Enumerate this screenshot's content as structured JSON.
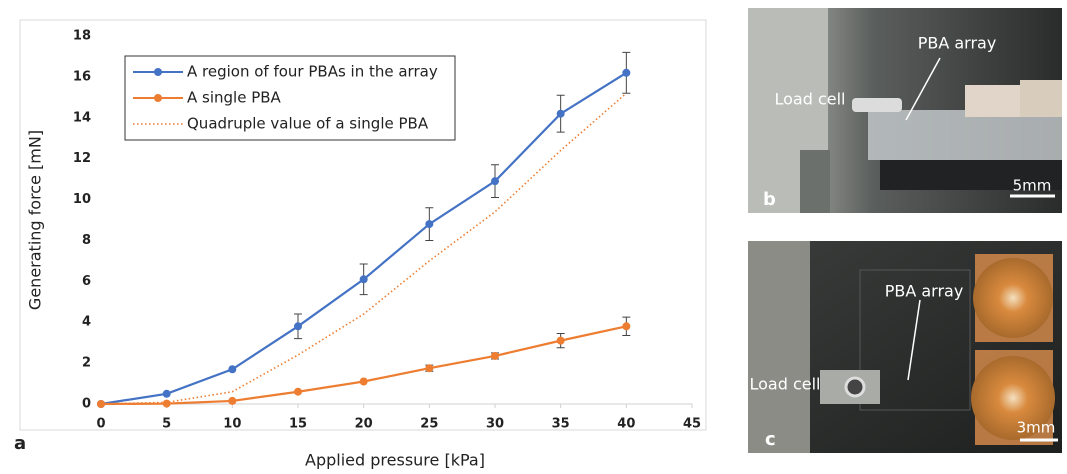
{
  "chart_data": {
    "type": "line",
    "panel_label": "a",
    "x_label": "Applied pressure [kPa]",
    "y_label": "Generating force [mN]",
    "x": [
      0,
      5,
      10,
      15,
      20,
      25,
      30,
      35,
      40
    ],
    "xlim": [
      0,
      45
    ],
    "xticks": [
      0,
      5,
      10,
      15,
      20,
      25,
      30,
      35,
      40,
      45
    ],
    "ylim": [
      0,
      18
    ],
    "yticks": [
      0,
      2,
      4,
      6,
      8,
      10,
      12,
      14,
      16,
      18
    ],
    "legend": "top-left",
    "series": [
      {
        "name": "A region of four PBAs in the array",
        "color": "#4472c4",
        "linestyle": "solid",
        "marker": true,
        "values": [
          0,
          0.5,
          1.7,
          3.8,
          6.1,
          8.8,
          10.9,
          14.2,
          16.2
        ],
        "errors": [
          0,
          0,
          0,
          0.6,
          0.75,
          0.8,
          0.8,
          0.9,
          1.0
        ]
      },
      {
        "name": "A single PBA",
        "color": "#ed7d31",
        "linestyle": "solid",
        "marker": true,
        "values": [
          0,
          0.02,
          0.15,
          0.6,
          1.1,
          1.75,
          2.35,
          3.1,
          3.8
        ],
        "errors": [
          0,
          0,
          0,
          0,
          0,
          0.15,
          0.15,
          0.35,
          0.45
        ]
      },
      {
        "name": "Quadruple value of a single PBA",
        "color": "#ed7d31",
        "linestyle": "dotted",
        "marker": false,
        "values": [
          0,
          0.08,
          0.6,
          2.4,
          4.4,
          7.0,
          9.4,
          12.4,
          15.2
        ]
      }
    ]
  },
  "photos": [
    {
      "panel_label": "b",
      "array_label": "PBA array",
      "cell_label": "Load cell",
      "scale_label": "5mm"
    },
    {
      "panel_label": "c",
      "array_label": "PBA array",
      "cell_label": "Load cell",
      "scale_label": "3mm"
    }
  ]
}
